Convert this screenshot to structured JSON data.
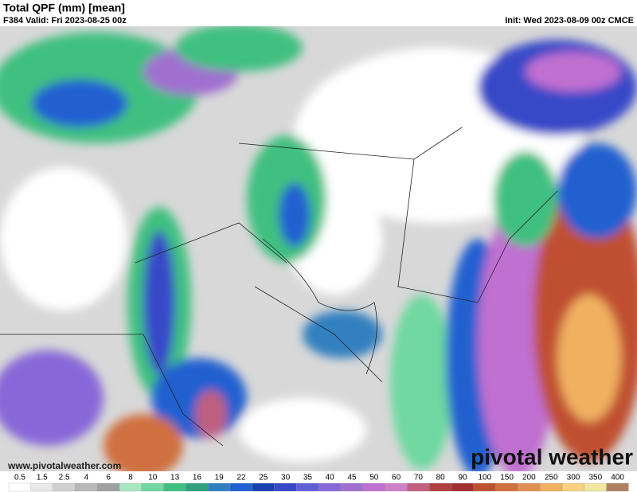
{
  "header": {
    "title": "Total QPF (mm) [mean]",
    "valid": "F384 Valid: Fri 2023-08-25 00z",
    "init": "Init: Wed 2023-08-09 00z CMCE"
  },
  "watermark": {
    "url": "www.pivotalweather.com",
    "logo": "pivotal weather"
  },
  "colorbar": {
    "labels": [
      0.5,
      1.5,
      2.5,
      4,
      6,
      8,
      10,
      13,
      16,
      19,
      22,
      25,
      30,
      35,
      40,
      45,
      50,
      60,
      70,
      80,
      90,
      100,
      150,
      200,
      250,
      300,
      350,
      400
    ],
    "colors": [
      "#ffffff",
      "#e8e8e8",
      "#d0d0d0",
      "#b8b8b8",
      "#a0a0a0",
      "#a8e8c0",
      "#70d8a0",
      "#40c080",
      "#30a080",
      "#3080c0",
      "#2060d0",
      "#1840b0",
      "#3848c8",
      "#6060d8",
      "#8868d8",
      "#a070d0",
      "#c070d0",
      "#d080c8",
      "#c06080",
      "#b04040",
      "#a03030",
      "#c05030",
      "#d07040",
      "#e09050",
      "#f0b060",
      "#f8d080",
      "#f0e8a0",
      "#b08060"
    ]
  }
}
